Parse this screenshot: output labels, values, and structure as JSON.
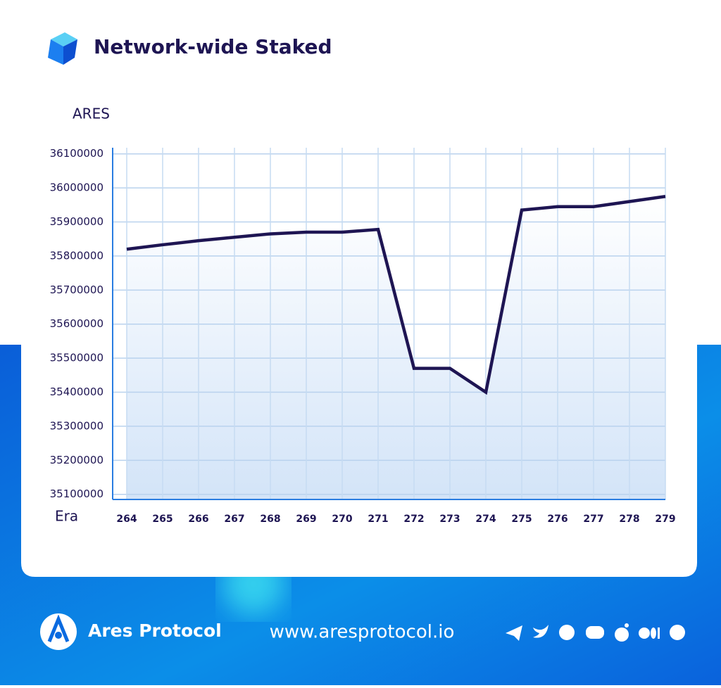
{
  "chart_data": {
    "type": "line",
    "title": "Network-wide Staked",
    "y_label": "ARES",
    "x_label": "Era",
    "categories": [
      "264",
      "265",
      "266",
      "267",
      "268",
      "269",
      "270",
      "271",
      "272",
      "273",
      "274",
      "275",
      "276",
      "277",
      "278",
      "279"
    ],
    "series": [
      {
        "name": "Network-wide Staked",
        "color": "#1e1553",
        "values": [
          35820000,
          35833000,
          35845000,
          35855000,
          35865000,
          35870000,
          35870000,
          35878000,
          35470000,
          35470000,
          35400000,
          35935000,
          35945000,
          35945000,
          35960000,
          35975000
        ]
      }
    ],
    "ylim": [
      35085000,
      36118000
    ],
    "yticks": [
      35100000,
      35200000,
      35300000,
      35400000,
      35500000,
      35600000,
      35700000,
      35800000,
      35900000,
      36000000,
      36100000
    ],
    "grid": true
  },
  "footer": {
    "brand": "Ares Protocol",
    "url": "www.aresprotocol.io"
  }
}
